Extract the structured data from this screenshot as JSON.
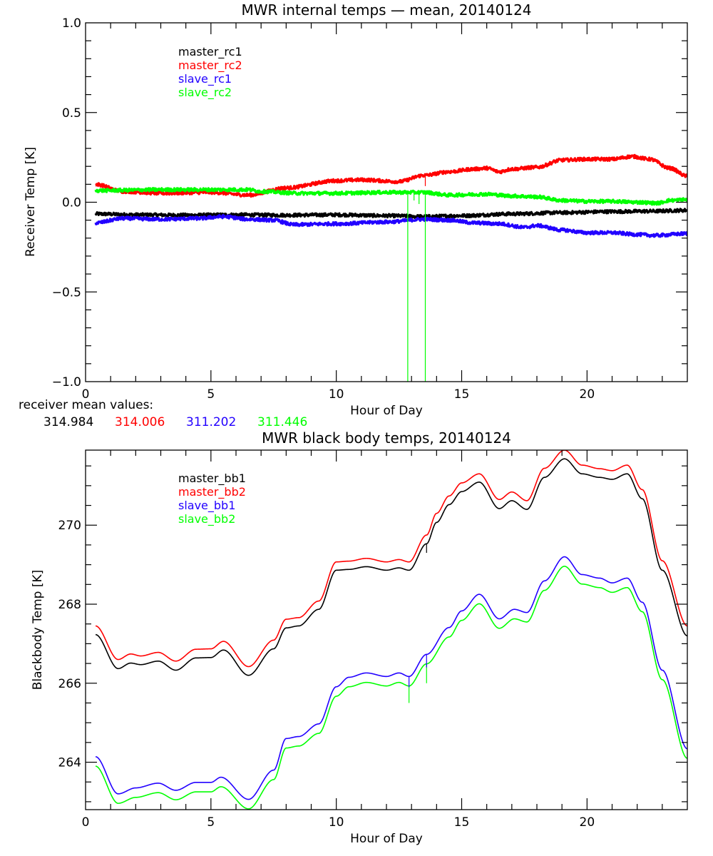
{
  "colors": {
    "black": "#000000",
    "red": "#ff0000",
    "blue": "#2200ff",
    "green": "#00ff00"
  },
  "receiver_mean": {
    "label": "receiver mean values:",
    "values": [
      {
        "text": "314.984",
        "color": "#000000"
      },
      {
        "text": "314.006",
        "color": "#ff0000"
      },
      {
        "text": "311.202",
        "color": "#2200ff"
      },
      {
        "text": "311.446",
        "color": "#00ff00"
      }
    ]
  },
  "chart_data": [
    {
      "type": "line",
      "title": "MWR internal temps — mean, 20140124",
      "xlabel": "Hour of Day",
      "ylabel": "Receiver Temp [K]",
      "xlim": [
        0,
        24
      ],
      "ylim": [
        -1.0,
        1.0
      ],
      "xticks": [
        0,
        5,
        10,
        15,
        20
      ],
      "xtick_labels": [
        "0",
        "5",
        "10",
        "15",
        "20"
      ],
      "x_minor_step": 1,
      "yticks": [
        -1.0,
        -0.5,
        0.0,
        0.5,
        1.0
      ],
      "ytick_labels": [
        "−1.0",
        "−0.5",
        "0.0",
        "0.5",
        "1.0"
      ],
      "y_minor_step": 0.1,
      "grid": false,
      "legend_position": "top-left",
      "noise": true,
      "series": [
        {
          "name": "master_rc1",
          "color": "#000000",
          "x": [
            0.4,
            2,
            4,
            6,
            8,
            10,
            12,
            13.5,
            15,
            17,
            19,
            21,
            22.5,
            24
          ],
          "y": [
            -0.065,
            -0.07,
            -0.072,
            -0.07,
            -0.072,
            -0.07,
            -0.075,
            -0.08,
            -0.075,
            -0.065,
            -0.058,
            -0.052,
            -0.05,
            -0.045
          ]
        },
        {
          "name": "master_rc2",
          "color": "#ff0000",
          "x": [
            0.4,
            1.5,
            3,
            5,
            6.5,
            8,
            10,
            11,
            12.5,
            13.5,
            14.5,
            15.5,
            16,
            16.5,
            17,
            18,
            19,
            20,
            21,
            21.8,
            22.5,
            23.3,
            24
          ],
          "y": [
            0.1,
            0.06,
            0.05,
            0.055,
            0.04,
            0.08,
            0.12,
            0.125,
            0.115,
            0.15,
            0.17,
            0.185,
            0.19,
            0.17,
            0.185,
            0.195,
            0.235,
            0.24,
            0.24,
            0.255,
            0.24,
            0.19,
            0.145
          ]
        },
        {
          "name": "slave_rc1",
          "color": "#2200ff",
          "x": [
            0.4,
            1.5,
            3,
            4.5,
            5.5,
            6.5,
            7.5,
            8.3,
            10,
            12,
            13.5,
            14.5,
            15.5,
            16.5,
            17.5,
            18,
            19,
            20,
            21,
            22,
            22.7,
            24
          ],
          "y": [
            -0.115,
            -0.09,
            -0.095,
            -0.09,
            -0.08,
            -0.095,
            -0.1,
            -0.125,
            -0.12,
            -0.11,
            -0.095,
            -0.1,
            -0.115,
            -0.12,
            -0.14,
            -0.13,
            -0.155,
            -0.17,
            -0.17,
            -0.18,
            -0.185,
            -0.175
          ]
        },
        {
          "name": "slave_rc2",
          "color": "#00ff00",
          "x": [
            0.4,
            3,
            6.5,
            7,
            8.5,
            10,
            12,
            13.5,
            14.5,
            16,
            17,
            18,
            19,
            20,
            21,
            22,
            22.8,
            23.3,
            24
          ],
          "y": [
            0.065,
            0.07,
            0.07,
            0.06,
            0.05,
            0.05,
            0.055,
            0.055,
            0.04,
            0.045,
            0.035,
            0.03,
            0.01,
            0.005,
            0.005,
            0.0,
            -0.005,
            0.01,
            0.015
          ]
        }
      ],
      "spikes": [
        {
          "series": "slave_rc2",
          "x": 12.85,
          "y": -1.0
        },
        {
          "series": "slave_rc2",
          "x": 13.55,
          "y": -1.0
        },
        {
          "series": "slave_rc2",
          "x": 13.1,
          "y": 0.01
        },
        {
          "series": "slave_rc2",
          "x": 13.3,
          "y": -0.01
        },
        {
          "series": "master_rc2",
          "x": 13.55,
          "y": 0.09
        }
      ]
    },
    {
      "type": "line",
      "title": "MWR black body temps, 20140124",
      "xlabel": "Hour of Day",
      "ylabel": "Blackbody Temp [K]",
      "xlim": [
        0,
        24
      ],
      "ylim": [
        262.8,
        271.9
      ],
      "xticks": [
        0,
        5,
        10,
        15,
        20
      ],
      "xtick_labels": [
        "0",
        "5",
        "10",
        "15",
        "20"
      ],
      "x_minor_step": 1,
      "yticks": [
        264,
        266,
        268,
        270
      ],
      "ytick_labels": [
        "264",
        "266",
        "268",
        "270"
      ],
      "y_minor_step": 0.5,
      "grid": false,
      "legend_position": "top-left",
      "noise": false,
      "series": [
        {
          "name": "master_bb1",
          "color": "#000000",
          "x": [
            0.4,
            1.3,
            1.8,
            2.2,
            2.9,
            3.6,
            4.4,
            5.0,
            5.5,
            6.5,
            7.5,
            8.0,
            8.5,
            9.3,
            10.0,
            10.5,
            11.2,
            12.0,
            12.5,
            12.9,
            13.6,
            14.0,
            14.5,
            15.0,
            15.7,
            16.5,
            17.0,
            17.6,
            18.3,
            19.1,
            19.8,
            20.5,
            21.0,
            21.6,
            22.2,
            23.0,
            24.0
          ],
          "y": [
            267.23,
            266.37,
            266.51,
            266.47,
            266.56,
            266.33,
            266.64,
            266.65,
            266.84,
            266.2,
            266.87,
            267.4,
            267.45,
            267.87,
            268.86,
            268.88,
            268.95,
            268.86,
            268.92,
            268.86,
            269.53,
            270.07,
            270.52,
            270.85,
            271.09,
            270.42,
            270.62,
            270.4,
            271.21,
            271.68,
            271.3,
            271.21,
            271.16,
            271.3,
            270.67,
            268.86,
            267.2
          ]
        },
        {
          "name": "master_bb2",
          "color": "#ff0000",
          "x": [
            0.4,
            1.3,
            1.8,
            2.2,
            2.9,
            3.6,
            4.4,
            5.0,
            5.5,
            6.5,
            7.5,
            8.0,
            8.5,
            9.3,
            10.0,
            10.5,
            11.2,
            12.0,
            12.5,
            12.9,
            13.6,
            14.0,
            14.5,
            15.0,
            15.7,
            16.5,
            17.0,
            17.6,
            18.3,
            19.1,
            19.8,
            20.5,
            21.0,
            21.6,
            22.2,
            23.0,
            24.0
          ],
          "y": [
            267.45,
            266.6,
            266.74,
            266.69,
            266.78,
            266.56,
            266.86,
            266.87,
            267.06,
            266.42,
            267.09,
            267.62,
            267.66,
            268.08,
            269.07,
            269.09,
            269.16,
            269.07,
            269.13,
            269.07,
            269.75,
            270.3,
            270.74,
            271.07,
            271.3,
            270.65,
            270.84,
            270.62,
            271.44,
            271.9,
            271.52,
            271.43,
            271.38,
            271.52,
            270.9,
            269.1,
            267.45
          ]
        },
        {
          "name": "slave_bb1",
          "color": "#2200ff",
          "x": [
            0.4,
            1.3,
            2.0,
            2.9,
            3.6,
            4.4,
            5.0,
            5.4,
            6.5,
            7.5,
            8.0,
            8.5,
            9.3,
            10.0,
            10.5,
            11.2,
            12.0,
            12.5,
            12.9,
            13.6,
            14.5,
            15.0,
            15.7,
            16.5,
            17.1,
            17.6,
            18.3,
            19.1,
            19.8,
            20.5,
            21.0,
            21.6,
            22.2,
            23.0,
            24.0
          ],
          "y": [
            264.14,
            263.2,
            263.35,
            263.47,
            263.29,
            263.49,
            263.49,
            263.62,
            263.06,
            263.8,
            264.6,
            264.65,
            264.97,
            265.91,
            266.15,
            266.26,
            266.17,
            266.26,
            266.17,
            266.73,
            267.41,
            267.83,
            268.25,
            267.63,
            267.87,
            267.79,
            268.59,
            269.2,
            268.75,
            268.66,
            268.54,
            268.66,
            268.05,
            266.33,
            264.34
          ]
        },
        {
          "name": "slave_bb2",
          "color": "#00ff00",
          "x": [
            0.4,
            1.3,
            2.0,
            2.9,
            3.6,
            4.4,
            5.0,
            5.4,
            6.5,
            7.5,
            8.0,
            8.5,
            9.3,
            10.0,
            10.5,
            11.2,
            12.0,
            12.5,
            12.9,
            13.6,
            14.5,
            15.0,
            15.7,
            16.5,
            17.1,
            17.6,
            18.3,
            19.1,
            19.8,
            20.5,
            21.0,
            21.6,
            22.2,
            23.0,
            24.0
          ],
          "y": [
            263.9,
            262.96,
            263.11,
            263.23,
            263.05,
            263.25,
            263.25,
            263.38,
            262.82,
            263.56,
            264.36,
            264.41,
            264.73,
            265.67,
            265.91,
            266.02,
            265.93,
            266.02,
            265.93,
            266.49,
            267.17,
            267.59,
            268.01,
            267.39,
            267.63,
            267.55,
            268.35,
            268.96,
            268.51,
            268.42,
            268.3,
            268.42,
            267.81,
            266.09,
            264.1
          ]
        }
      ],
      "spikes": [
        {
          "series": "slave_bb2",
          "x": 12.9,
          "y": 265.5
        },
        {
          "series": "slave_bb2",
          "x": 13.6,
          "y": 266.0
        },
        {
          "series": "slave_bb1",
          "x": 12.9,
          "y": 265.9
        },
        {
          "series": "slave_bb1",
          "x": 13.6,
          "y": 266.4
        },
        {
          "series": "master_bb1",
          "x": 13.6,
          "y": 269.3
        }
      ]
    }
  ]
}
